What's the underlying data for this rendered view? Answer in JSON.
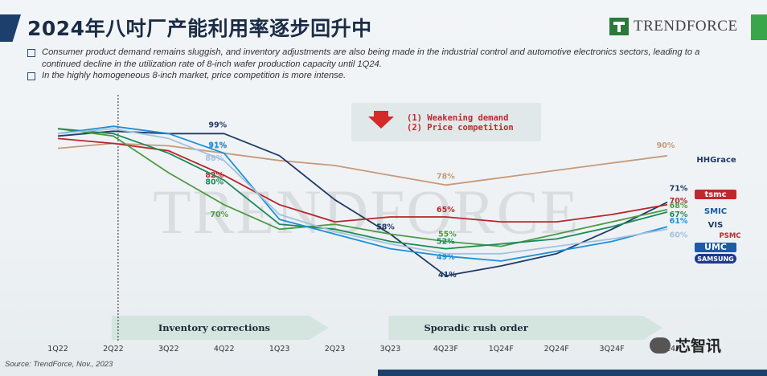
{
  "page": {
    "title": "2024年八吋厂产能利用率逐步回升中",
    "logo_text": "TRENDFORCE",
    "bullets": [
      "Consumer product demand remains sluggish, and inventory adjustments are also being made in the industrial control and automotive electronics sectors, leading to a continued decline in the utilization rate of 8-inch wafer production capacity until 1Q24.",
      "In the highly homogeneous 8-inch market, price competition is more intense."
    ],
    "source": "Source: TrendForce, Nov., 2023",
    "watermark": "芯智讯"
  },
  "chart_data": {
    "type": "line",
    "categories": [
      "1Q22",
      "2Q22",
      "3Q22",
      "4Q22",
      "1Q23",
      "2Q23",
      "3Q23",
      "4Q23F",
      "1Q24F",
      "2Q24F",
      "3Q24F",
      "4Q24F"
    ],
    "ylim": [
      25,
      105
    ],
    "grid": false,
    "background_watermark": "TRENDFORCE",
    "callout": {
      "lines": [
        "(1) Weakening demand",
        "(2) Price competition"
      ],
      "color": "#c0282d"
    },
    "phases": [
      {
        "label": "Inventory corrections",
        "from": "2Q22",
        "to": "2Q23"
      },
      {
        "label": "Sporadic rush order",
        "from": "3Q23",
        "to": "4Q24F"
      }
    ],
    "series": [
      {
        "name": "HHGrace",
        "color": "#c79a78",
        "values": [
          93,
          95,
          94,
          91,
          88,
          86,
          82,
          78,
          81,
          84,
          87,
          90
        ],
        "labels": {
          "3": "91%",
          "7": "78%",
          "11": "90%"
        }
      },
      {
        "name": "TSMC",
        "color": "#1f3b66",
        "values": [
          98,
          100,
          99,
          99,
          90,
          72,
          58,
          41,
          45,
          50,
          60,
          71
        ],
        "labels": {
          "3": "99%",
          "6": "58%",
          "7": "41%",
          "11": "71%"
        }
      },
      {
        "name": "SMIC",
        "color": "#b8262b",
        "values": [
          97,
          95,
          92,
          82,
          70,
          63,
          65,
          65,
          63,
          63,
          66,
          70
        ],
        "labels": {
          "3": "82%",
          "7": "65%",
          "11": "70%"
        }
      },
      {
        "name": "VIS",
        "color": "#4f9a43",
        "values": [
          101,
          98,
          83,
          70,
          60,
          62,
          58,
          55,
          53,
          58,
          63,
          68
        ],
        "labels": {
          "3": "70%",
          "7": "55%",
          "11": "68%"
        }
      },
      {
        "name": "PSMC",
        "color": "#1b8a58",
        "values": [
          101,
          99,
          91,
          80,
          62,
          60,
          55,
          52,
          54,
          56,
          61,
          67
        ],
        "labels": {
          "3": "80%",
          "7": "52%",
          "11": "67%"
        }
      },
      {
        "name": "UMC",
        "color": "#1e8fd8",
        "values": [
          99,
          102,
          99,
          91,
          64,
          58,
          52,
          49,
          47,
          51,
          55,
          61
        ],
        "labels": {
          "3": "91%",
          "7": "49%",
          "11": "61%"
        }
      },
      {
        "name": "Samsung",
        "color": "#a4c2dc",
        "values": [
          99,
          101,
          97,
          88,
          66,
          59,
          54,
          50,
          50,
          53,
          56,
          60
        ],
        "labels": {
          "3": "88%",
          "11": "60%"
        }
      }
    ],
    "legend_logos": [
      "HHGrace",
      "tsmc",
      "SMIC",
      "VIS",
      "PSMC",
      "UMC",
      "SAMSUNG"
    ]
  }
}
